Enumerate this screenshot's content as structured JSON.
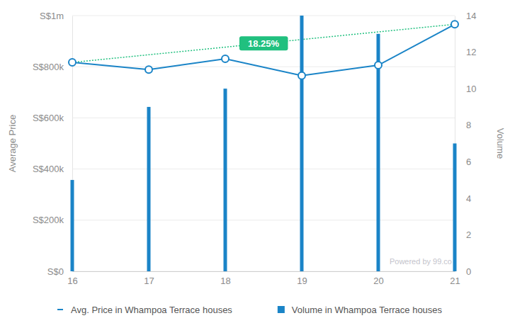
{
  "chart_data": {
    "type": "bar",
    "y_label": "Average Price",
    "y2_label": "Volume",
    "categories": [
      "16",
      "17",
      "18",
      "19",
      "20",
      "21"
    ],
    "series": [
      {
        "name": "Avg. Price in Whampoa Terrace houses",
        "type": "line",
        "color": "#1a84c7",
        "marker": "circle",
        "values": [
          817000,
          789000,
          831000,
          765000,
          806000,
          966000
        ]
      },
      {
        "name": "Volume in Whampoa Terrace houses",
        "type": "bar",
        "color": "#1a84c7",
        "axis": "y2",
        "values": [
          5,
          9,
          10,
          14,
          13,
          7
        ]
      }
    ],
    "ylim": [
      0,
      1000000
    ],
    "yticks": [
      {
        "value": 0,
        "label": "S$0"
      },
      {
        "value": 200000,
        "label": "S$200k"
      },
      {
        "value": 400000,
        "label": "S$400k"
      },
      {
        "value": 600000,
        "label": "S$600k"
      },
      {
        "value": 800000,
        "label": "S$800k"
      },
      {
        "value": 1000000,
        "label": "S$1m"
      }
    ],
    "y2lim": [
      0,
      14
    ],
    "y2ticks": [
      0,
      2,
      4,
      6,
      8,
      10,
      12,
      14
    ],
    "grid": true,
    "legend": "bottom",
    "annotations": [
      {
        "text": "18.25%",
        "color": "#21c07f",
        "line_style": "dotted"
      },
      {
        "text": "Powered by 99.co"
      }
    ]
  }
}
